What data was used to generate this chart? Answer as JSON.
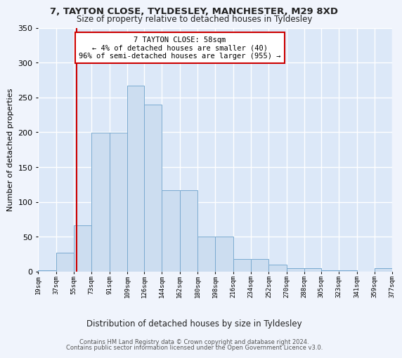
{
  "title1": "7, TAYTON CLOSE, TYLDESLEY, MANCHESTER, M29 8XD",
  "title2": "Size of property relative to detached houses in Tyldesley",
  "xlabel": "Distribution of detached houses by size in Tyldesley",
  "ylabel": "Number of detached properties",
  "footer1": "Contains HM Land Registry data © Crown copyright and database right 2024.",
  "footer2": "Contains public sector information licensed under the Open Government Licence v3.0.",
  "annotation_title": "7 TAYTON CLOSE: 58sqm",
  "annotation_line1": "← 4% of detached houses are smaller (40)",
  "annotation_line2": "96% of semi-detached houses are larger (955) →",
  "property_size_sqm": 58,
  "bin_edges": [
    19,
    37,
    55,
    73,
    91,
    109,
    126,
    144,
    162,
    180,
    198,
    216,
    234,
    252,
    270,
    288,
    305,
    323,
    341,
    359,
    377
  ],
  "heights": [
    2,
    27,
    66,
    199,
    199,
    267,
    240,
    117,
    117,
    50,
    50,
    18,
    18,
    10,
    5,
    5,
    2,
    2,
    0,
    5
  ],
  "bar_color": "#ccddf0",
  "bar_edge_color": "#7aaad0",
  "property_line_color": "#cc0000",
  "annotation_box_edge_color": "#cc0000",
  "fig_bg_color": "#f0f4fc",
  "ax_bg_color": "#dce8f8",
  "grid_color": "#ffffff",
  "title1_color": "#222222",
  "title2_color": "#222222",
  "footer_color": "#555555",
  "ylim": [
    0,
    350
  ],
  "yticks": [
    0,
    50,
    100,
    150,
    200,
    250,
    300,
    350
  ]
}
